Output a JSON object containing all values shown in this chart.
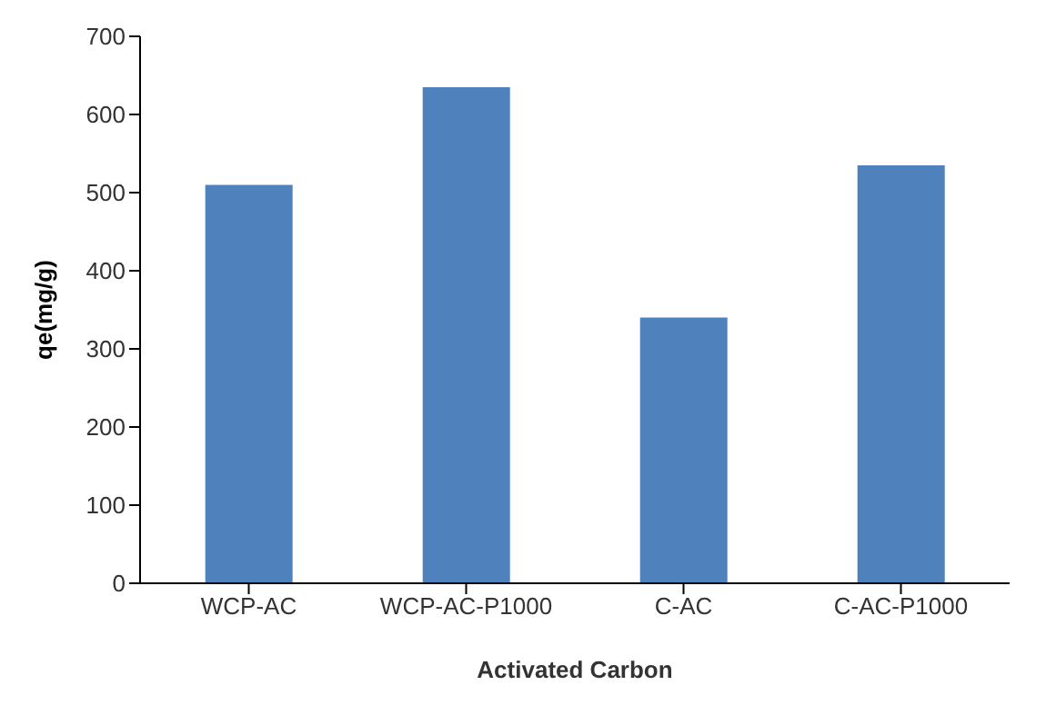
{
  "chart_data": {
    "type": "bar",
    "xlabel": "Activated Carbon",
    "ylabel": "qe(mg/g)",
    "categories": [
      "WCP-AC",
      "WCP-AC-P1000",
      "C-AC",
      "C-AC-P1000"
    ],
    "values": [
      510,
      635,
      340,
      535
    ],
    "color": "#4f81bd",
    "ylim": [
      0,
      700
    ],
    "yticks": [
      0,
      100,
      200,
      300,
      400,
      500,
      600,
      700
    ],
    "grid": false
  }
}
